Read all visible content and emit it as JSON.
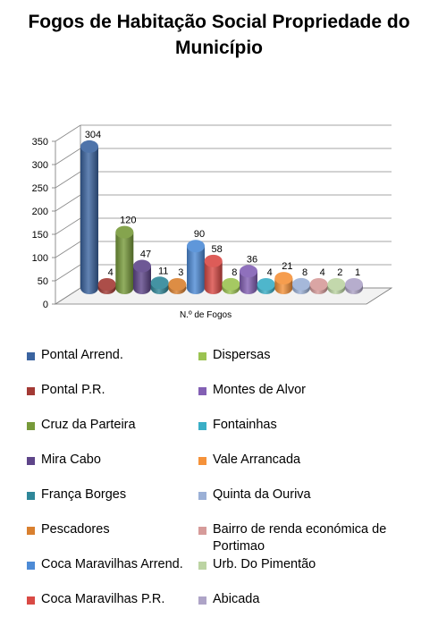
{
  "chart_data": {
    "type": "bar",
    "title": "Fogos de Habitação Social Propriedade do Município",
    "xlabel": "N.º de Fogos",
    "ylabel": "",
    "ylim": [
      0,
      350
    ],
    "yticks": [
      "0",
      "50",
      "100",
      "150",
      "200",
      "250",
      "300",
      "350"
    ],
    "grid": true,
    "three_d": true,
    "legend_position": "bottom",
    "series": [
      {
        "name": "Pontal Arrend.",
        "value": 304,
        "color": "#3b64a0"
      },
      {
        "name": "Pontal P.R.",
        "value": 4,
        "color": "#a33a35"
      },
      {
        "name": "Cruz da Parteira",
        "value": 120,
        "color": "#779a3a"
      },
      {
        "name": "Mira Cabo",
        "value": 47,
        "color": "#5e4589"
      },
      {
        "name": "França Borges",
        "value": 11,
        "color": "#2f8799"
      },
      {
        "name": "Pescadores",
        "value": 3,
        "color": "#d9802f"
      },
      {
        "name": "Coca Maravilhas Arrend.",
        "value": 90,
        "color": "#4d8bd6"
      },
      {
        "name": "Coca Maravilhas P.R.",
        "value": 58,
        "color": "#d94a45"
      },
      {
        "name": "Dispersas",
        "value": 8,
        "color": "#9bc351"
      },
      {
        "name": "Montes de Alvor",
        "value": 36,
        "color": "#8360b4"
      },
      {
        "name": "Fontainhas",
        "value": 4,
        "color": "#3aaec6"
      },
      {
        "name": "Vale Arrancada",
        "value": 21,
        "color": "#f5923a"
      },
      {
        "name": "Quinta da Ouriva",
        "value": 8,
        "color": "#9bb0d6"
      },
      {
        "name": "Bairro de renda económica de Portimao",
        "value": 4,
        "color": "#d69b9a"
      },
      {
        "name": "Urb. Do Pimentão",
        "value": 2,
        "color": "#bcd4a3"
      },
      {
        "name": "Abicada",
        "value": 1,
        "color": "#aea4c7"
      }
    ]
  }
}
